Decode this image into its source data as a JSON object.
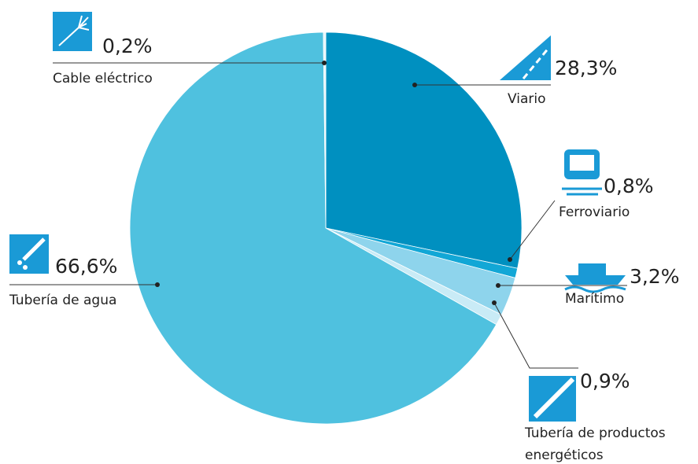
{
  "chart_data": {
    "type": "pie",
    "categories": [
      "Viario",
      "Ferroviario",
      "Marítimo",
      "Tubería de productos energéticos",
      "Tubería de agua",
      "Cable eléctrico"
    ],
    "values": [
      28.3,
      0.8,
      3.2,
      0.9,
      66.6,
      0.2
    ],
    "value_labels": [
      "28,3%",
      "0,8%",
      "3,2%",
      "0,9%",
      "66,6%",
      "0,2%"
    ],
    "colors": [
      "#0090c0",
      "#12a7d6",
      "#8ed4ec",
      "#c9ebf6",
      "#4fc1df",
      "#e6f6fb"
    ]
  }
}
